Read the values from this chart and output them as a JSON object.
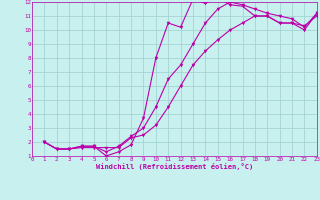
{
  "xlabel": "Windchill (Refroidissement éolien,°C)",
  "bg_color": "#c8f0ee",
  "grid_color": "#9ecece",
  "line_color": "#bb00aa",
  "xlim": [
    0,
    23
  ],
  "ylim": [
    1,
    12
  ],
  "xticks": [
    0,
    1,
    2,
    3,
    4,
    5,
    6,
    7,
    8,
    9,
    10,
    11,
    12,
    13,
    14,
    15,
    16,
    17,
    18,
    19,
    20,
    21,
    22,
    23
  ],
  "yticks": [
    1,
    2,
    3,
    4,
    5,
    6,
    7,
    8,
    9,
    10,
    11,
    12
  ],
  "line1_x": [
    1,
    2,
    3,
    4,
    5,
    6,
    7,
    8,
    9,
    10,
    11,
    12,
    13,
    14,
    15,
    16,
    17,
    18,
    19,
    20,
    21,
    22,
    23
  ],
  "line1_y": [
    2.0,
    1.5,
    1.5,
    1.6,
    1.6,
    1.6,
    1.6,
    2.3,
    2.5,
    3.2,
    4.5,
    6.0,
    7.5,
    8.5,
    9.3,
    10.0,
    10.5,
    11.0,
    11.0,
    10.5,
    10.5,
    10.3,
    11.0
  ],
  "line2_x": [
    1,
    2,
    3,
    4,
    5,
    6,
    7,
    8,
    9,
    10,
    11,
    12,
    13,
    14,
    15,
    16,
    17,
    18,
    19,
    20,
    21,
    22,
    23
  ],
  "line2_y": [
    2.0,
    1.5,
    1.5,
    1.7,
    1.7,
    1.3,
    1.7,
    2.4,
    3.0,
    4.5,
    6.5,
    7.5,
    9.0,
    10.5,
    11.5,
    12.0,
    11.8,
    11.5,
    11.2,
    11.0,
    10.8,
    10.2,
    11.2
  ],
  "line3_x": [
    1,
    2,
    3,
    4,
    5,
    6,
    7,
    8,
    9,
    10,
    11,
    12,
    13,
    14,
    15,
    16,
    17,
    18,
    19,
    20,
    21,
    22,
    23
  ],
  "line3_y": [
    2.0,
    1.5,
    1.5,
    1.7,
    1.7,
    1.0,
    1.3,
    1.8,
    3.7,
    8.0,
    10.5,
    10.2,
    12.2,
    11.9,
    12.3,
    11.8,
    11.7,
    11.0,
    11.0,
    10.5,
    10.5,
    10.0,
    11.2
  ]
}
